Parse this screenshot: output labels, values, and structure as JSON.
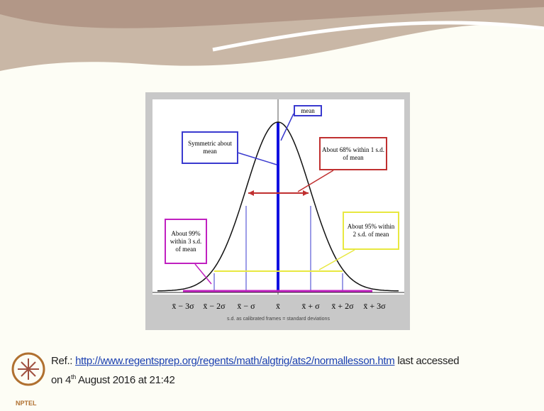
{
  "diagram": {
    "callouts": {
      "mean": "mean",
      "symmetric": "Symmetric about mean",
      "within1": "About 68% within 1 s.d. of mean",
      "within3": "About 99% within 3 s.d. of mean",
      "within2": "About 95% within 2 s.d. of mean"
    },
    "x_labels": [
      "x̄ − 3σ",
      "x̄ − 2σ",
      "x̄ − σ",
      "x̄",
      "x̄ + σ",
      "x̄ + 2σ",
      "x̄ + 3σ"
    ],
    "caption": "s.d. as calibrated frames = standard deviations"
  },
  "reference": {
    "prefix": "Ref.:",
    "link": "http://www.regentsprep.org/regents/math/algtrig/ats2/normallesson.htm",
    "suffix": "last accessed",
    "line2_start": "on 4",
    "line2_sup": "th",
    "line2_end": "August 2016 at 21:42"
  },
  "logo": "NPTEL"
}
